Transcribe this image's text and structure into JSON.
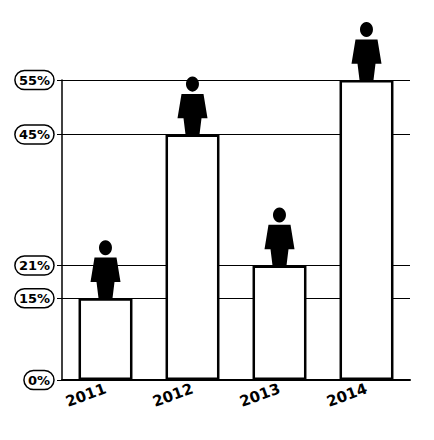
{
  "chart_data": {
    "type": "bar",
    "categories": [
      "2011",
      "2012",
      "2013",
      "2014"
    ],
    "values": [
      15,
      45,
      21,
      55
    ],
    "color": "#ffffff",
    "ylim": [
      0,
      55
    ],
    "yticks": [
      {
        "value": 0,
        "label": "0%"
      },
      {
        "value": 15,
        "label": "15%"
      },
      {
        "value": 21,
        "label": "21%"
      },
      {
        "value": 45,
        "label": "45%"
      },
      {
        "value": 55,
        "label": "55%"
      }
    ],
    "grid": true
  }
}
